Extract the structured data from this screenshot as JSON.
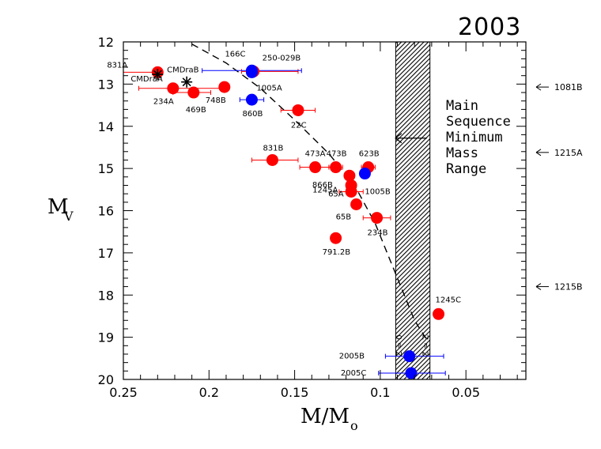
{
  "chart_data": {
    "type": "scatter",
    "title": "2003",
    "xlabel": "M/M",
    "xlabel_sub": "o",
    "ylabel": "M",
    "ylabel_sub": "V",
    "xlim": [
      0.25,
      0.015
    ],
    "ylim": [
      20,
      12
    ],
    "x_ticks": [
      "0.25",
      "0.2",
      "0.15",
      "0.1",
      "0.05"
    ],
    "x_tick_values": [
      0.25,
      0.2,
      0.15,
      0.1,
      0.05
    ],
    "y_ticks": [
      "12",
      "13",
      "14",
      "15",
      "16",
      "17",
      "18",
      "19",
      "20"
    ],
    "y_tick_values": [
      12,
      13,
      14,
      15,
      16,
      17,
      18,
      19,
      20
    ],
    "band": {
      "x_from": 0.091,
      "x_to": 0.071,
      "label_lines": [
        "Main",
        "Sequence",
        "Minimum",
        "Mass",
        "Range"
      ]
    },
    "band_arrow_label_anchor": {
      "x": 0.082,
      "y": 14.3
    },
    "z_labels": [
      {
        "text": "Z = 0",
        "x": 0.0875,
        "y": 19.2
      },
      {
        "text": "Z = Z",
        "x": 0.072,
        "y": 19.2
      }
    ],
    "curve": {
      "style": "dashed",
      "points": [
        [
          0.21,
          12.05
        ],
        [
          0.19,
          12.5
        ],
        [
          0.17,
          13.1
        ],
        [
          0.15,
          13.85
        ],
        [
          0.13,
          14.65
        ],
        [
          0.115,
          15.4
        ],
        [
          0.103,
          16.3
        ],
        [
          0.095,
          17.1
        ],
        [
          0.087,
          17.9
        ],
        [
          0.08,
          18.6
        ],
        [
          0.073,
          19.05
        ]
      ]
    },
    "series": [
      {
        "color": "#ff0000",
        "points": [
          {
            "label": "831A",
            "x": 0.23,
            "y": 12.72,
            "x_err": [
              0.25,
              0.23
            ]
          },
          {
            "label": "234A",
            "x": 0.221,
            "y": 13.1,
            "x_err": [
              0.241,
              0.19
            ]
          },
          {
            "label": "469B",
            "x": 0.209,
            "y": 13.2,
            "x_err": [
              0.221,
              0.199
            ]
          },
          {
            "label": "748B",
            "x": 0.191,
            "y": 13.07
          },
          {
            "label": "250-029B",
            "x": 0.174,
            "y": 12.7,
            "x_err": [
              0.181,
              0.148
            ]
          },
          {
            "label": "22C",
            "x": 0.148,
            "y": 13.62,
            "x_err": [
              0.158,
              0.138
            ]
          },
          {
            "label": "831B",
            "x": 0.163,
            "y": 14.8,
            "x_err": [
              0.175,
              0.148
            ]
          },
          {
            "label": "473A",
            "x": 0.138,
            "y": 14.97,
            "x_err": [
              0.147,
              0.13
            ]
          },
          {
            "label": "473B",
            "x": 0.126,
            "y": 14.97,
            "x_err": [
              0.13,
              0.122
            ]
          },
          {
            "label": "623B",
            "x": 0.107,
            "y": 14.97,
            "x_err": [
              0.111,
              0.103
            ]
          },
          {
            "label": "866B",
            "x": 0.118,
            "y": 15.17,
            "x_err": [
              0.12,
              0.116
            ]
          },
          {
            "label": "1245A",
            "x": 0.117,
            "y": 15.4,
            "x_err": [
              0.12,
              0.114
            ]
          },
          {
            "label": "65A",
            "x": 0.117,
            "y": 15.55,
            "x_err": [
              0.124,
              0.11
            ]
          },
          {
            "label": "65B",
            "x": 0.114,
            "y": 15.85
          },
          {
            "label": "234B",
            "x": 0.102,
            "y": 16.17,
            "x_err": [
              0.11,
              0.094
            ]
          },
          {
            "label": "791.2B",
            "x": 0.126,
            "y": 16.65
          },
          {
            "label": "1245C",
            "x": 0.066,
            "y": 18.45
          }
        ]
      },
      {
        "color": "#0000ff",
        "points": [
          {
            "label": "166C",
            "x": 0.175,
            "y": 12.68,
            "x_err": [
              0.204,
              0.146
            ]
          },
          {
            "label": "860B",
            "x": 0.175,
            "y": 13.37,
            "x_err": [
              0.182,
              0.168
            ]
          },
          {
            "label": "1005A",
            "x": 0.175,
            "y": 12.72
          },
          {
            "label": "1005B",
            "x": 0.109,
            "y": 15.12
          },
          {
            "label": "2005B",
            "x": 0.083,
            "y": 19.45,
            "x_err": [
              0.097,
              0.063
            ]
          },
          {
            "label": "2005C",
            "x": 0.082,
            "y": 19.85,
            "x_err": [
              0.101,
              0.062
            ]
          }
        ]
      },
      {
        "color": "#000000",
        "marker": "star",
        "points": [
          {
            "label": "CMDraA",
            "x": 0.23,
            "y": 12.77
          },
          {
            "label": "CMDraB",
            "x": 0.213,
            "y": 12.95
          }
        ]
      }
    ],
    "side_annotations": [
      {
        "label": "1081B",
        "y": 13.07
      },
      {
        "label": "1215A",
        "y": 14.62
      },
      {
        "label": "1215B",
        "y": 17.8
      }
    ]
  }
}
